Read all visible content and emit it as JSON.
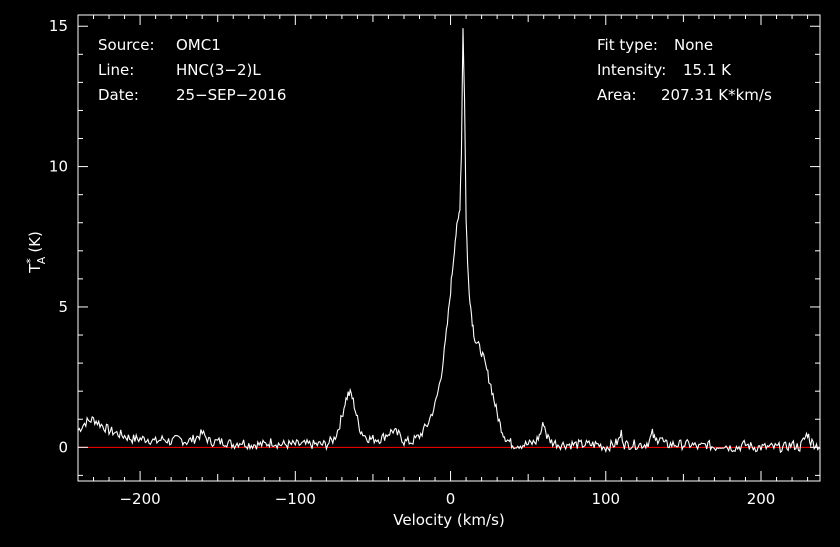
{
  "info": {
    "source_label": "Source:",
    "source_value": "OMC1",
    "line_label": "Line:",
    "line_value": "HNC(3−2)L",
    "date_label": "Date:",
    "date_value": "25−SEP−2016",
    "fit_label": "Fit type:",
    "fit_value": "None",
    "intensity_label": "Intensity:",
    "intensity_value": "15.1 K",
    "area_label": "Area:",
    "area_value": "207.31 K*km/s"
  },
  "colors": {
    "background": "#000000",
    "trace": "#ffffff",
    "baseline": "#ff0000",
    "axes": "#ffffff"
  },
  "chart_data": {
    "type": "line",
    "xlabel": "Velocity (km/s)",
    "ylabel_main": "T",
    "ylabel_sup": "*",
    "ylabel_sub": "A",
    "ylabel_unit": "(K)",
    "xlim": [
      -240,
      238
    ],
    "ylim": [
      -1.2,
      15.4
    ],
    "xticks": [
      -200,
      -100,
      0,
      100,
      200
    ],
    "xtick_labels": [
      "−200",
      "−100",
      "0",
      "100",
      "200"
    ],
    "yticks": [
      0,
      5,
      10,
      15
    ],
    "ytick_labels": [
      "0",
      "5",
      "10",
      "15"
    ],
    "baseline_y": 0,
    "grid": false,
    "legend": "none",
    "series": [
      {
        "x": [
          -240,
          -235,
          -230,
          -225,
          -220,
          -215,
          -210,
          -205,
          -200,
          -195,
          -190,
          -185,
          -180,
          -175,
          -170,
          -165,
          -160,
          -155,
          -150,
          -145,
          -140,
          -135,
          -130,
          -125,
          -120,
          -115,
          -110,
          -105,
          -100,
          -95,
          -90,
          -85,
          -80,
          -75,
          -72,
          -70,
          -68,
          -66,
          -64,
          -62,
          -60,
          -58,
          -55,
          -52,
          -50,
          -45,
          -40,
          -37,
          -35,
          -32,
          -30,
          -25,
          -20,
          -15,
          -10,
          -8,
          -6,
          -4,
          -2,
          0,
          1,
          2,
          3,
          4,
          5,
          6,
          7,
          8,
          9,
          10,
          11,
          12,
          13,
          14,
          15,
          16,
          18,
          20,
          22,
          24,
          26,
          28,
          30,
          32,
          34,
          36,
          38,
          40,
          45,
          50,
          55,
          58,
          60,
          62,
          65,
          70,
          75,
          80,
          85,
          90,
          95,
          100,
          105,
          108,
          110,
          112,
          115,
          120,
          125,
          128,
          130,
          132,
          135,
          138,
          140,
          145,
          150,
          155,
          160,
          165,
          170,
          175,
          180,
          185,
          190,
          195,
          200,
          205,
          210,
          215,
          220,
          225,
          228,
          230,
          232,
          235,
          238
        ],
        "y": [
          0.6,
          0.9,
          1.0,
          0.8,
          0.6,
          0.5,
          0.4,
          0.3,
          0.3,
          0.3,
          0.2,
          0.3,
          0.2,
          0.3,
          0.2,
          0.3,
          0.5,
          0.2,
          0.2,
          0.2,
          0.1,
          0.2,
          0.1,
          0.1,
          0.1,
          0.2,
          0.1,
          0.1,
          0.1,
          0.1,
          0.1,
          0.1,
          0.1,
          0.3,
          0.7,
          1.1,
          1.6,
          1.9,
          1.9,
          1.5,
          1.0,
          0.6,
          0.4,
          0.3,
          0.3,
          0.3,
          0.5,
          0.6,
          0.5,
          0.4,
          0.2,
          0.2,
          0.4,
          0.8,
          1.5,
          2.0,
          2.6,
          3.4,
          4.4,
          5.6,
          6.2,
          6.8,
          7.4,
          7.8,
          8.1,
          8.6,
          10.5,
          15.0,
          12.5,
          8.2,
          6.5,
          5.6,
          5.0,
          4.5,
          4.1,
          3.8,
          3.6,
          3.4,
          3.0,
          2.6,
          2.2,
          1.7,
          1.2,
          0.8,
          0.5,
          0.3,
          0.2,
          0.1,
          0.1,
          0.1,
          0.2,
          0.5,
          0.9,
          0.4,
          0.2,
          0.1,
          0.1,
          0.1,
          0.1,
          0.1,
          0.1,
          0.0,
          0.1,
          0.2,
          0.5,
          0.1,
          0.1,
          0.1,
          0.1,
          0.2,
          0.5,
          0.2,
          0.4,
          0.1,
          0.1,
          0.1,
          0.1,
          0.1,
          0.0,
          0.1,
          0.0,
          0.1,
          0.0,
          0.0,
          0.1,
          0.0,
          0.0,
          0.0,
          0.0,
          0.0,
          0.1,
          0.0,
          0.3,
          0.5,
          0.2,
          0.1,
          0.0
        ]
      }
    ]
  }
}
